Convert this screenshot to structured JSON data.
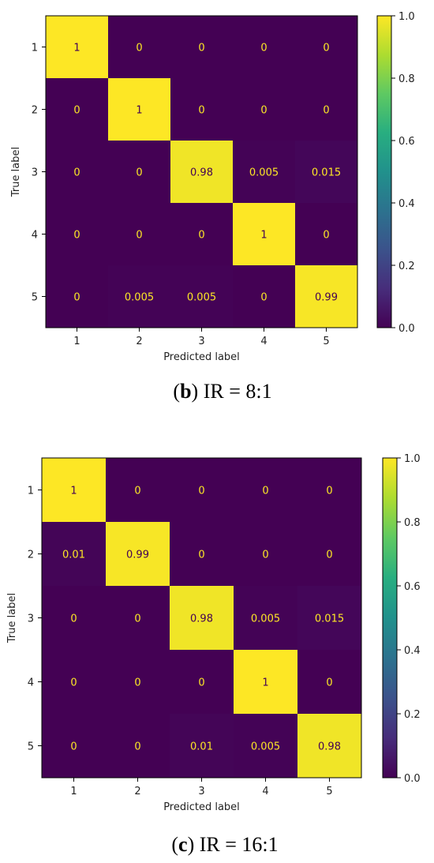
{
  "chart_data": [
    {
      "type": "heatmap",
      "caption_letter": "b",
      "caption_rest": " IR = 8:1",
      "xlabel": "Predicted label",
      "ylabel": "True label",
      "x_categories": [
        "1",
        "2",
        "3",
        "4",
        "5"
      ],
      "y_categories": [
        "1",
        "2",
        "3",
        "4",
        "5"
      ],
      "values": [
        [
          1,
          0,
          0,
          0,
          0
        ],
        [
          0,
          1,
          0,
          0,
          0
        ],
        [
          0,
          0,
          0.98,
          0.005,
          0.015
        ],
        [
          0,
          0,
          0,
          1,
          0
        ],
        [
          0,
          0.005,
          0.005,
          0,
          0.99
        ]
      ],
      "labels": [
        [
          "1",
          "0",
          "0",
          "0",
          "0"
        ],
        [
          "0",
          "1",
          "0",
          "0",
          "0"
        ],
        [
          "0",
          "0",
          "0.98",
          "0.005",
          "0.015"
        ],
        [
          "0",
          "0",
          "0",
          "1",
          "0"
        ],
        [
          "0",
          "0.005",
          "0.005",
          "0",
          "0.99"
        ]
      ],
      "colorbar_range": [
        0,
        1
      ],
      "colorbar_ticks": [
        "0.0",
        "0.2",
        "0.4",
        "0.6",
        "0.8",
        "1.0"
      ],
      "colormap": "viridis"
    },
    {
      "type": "heatmap",
      "caption_letter": "c",
      "caption_rest": " IR = 16:1",
      "xlabel": "Predicted label",
      "ylabel": "True label",
      "x_categories": [
        "1",
        "2",
        "3",
        "4",
        "5"
      ],
      "y_categories": [
        "1",
        "2",
        "3",
        "4",
        "5"
      ],
      "values": [
        [
          1,
          0,
          0,
          0,
          0
        ],
        [
          0.01,
          0.99,
          0,
          0,
          0
        ],
        [
          0,
          0,
          0.98,
          0.005,
          0.015
        ],
        [
          0,
          0,
          0,
          1,
          0
        ],
        [
          0,
          0,
          0.01,
          0.005,
          0.98
        ]
      ],
      "labels": [
        [
          "1",
          "0",
          "0",
          "0",
          "0"
        ],
        [
          "0.01",
          "0.99",
          "0",
          "0",
          "0"
        ],
        [
          "0",
          "0",
          "0.98",
          "0.005",
          "0.015"
        ],
        [
          "0",
          "0",
          "0",
          "1",
          "0"
        ],
        [
          "0",
          "0",
          "0.01",
          "0.005",
          "0.98"
        ]
      ],
      "colorbar_range": [
        0,
        1
      ],
      "colorbar_ticks": [
        "0.0",
        "0.2",
        "0.4",
        "0.6",
        "0.8",
        "1.0"
      ],
      "colormap": "viridis"
    }
  ]
}
